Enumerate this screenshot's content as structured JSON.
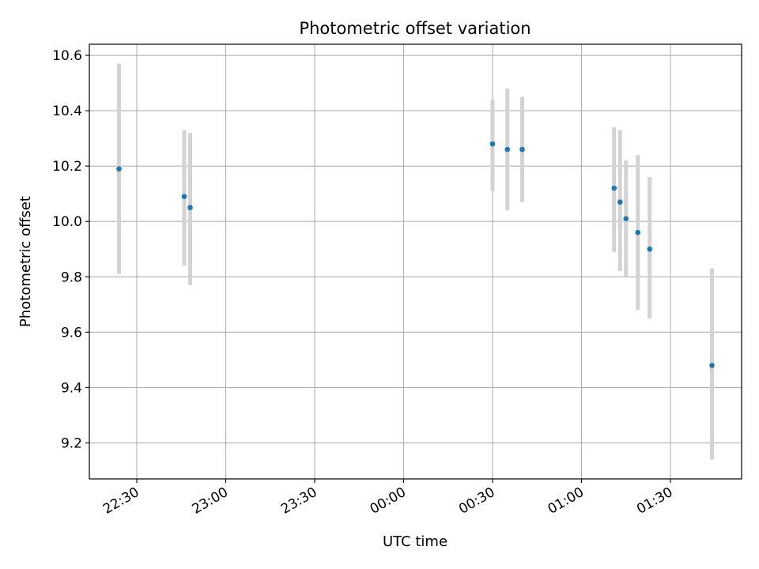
{
  "chart_data": {
    "type": "scatter",
    "title": "Photometric offset variation",
    "xlabel": "UTC time",
    "ylabel": "Photometric offset",
    "x_ticks": [
      "22:30",
      "23:00",
      "23:30",
      "00:00",
      "00:30",
      "01:00",
      "01:30"
    ],
    "y_ticks": [
      "9.2",
      "9.4",
      "9.6",
      "9.8",
      "10.0",
      "10.2",
      "10.4",
      "10.6"
    ],
    "xlim": [
      "22:14",
      "01:54"
    ],
    "ylim": [
      9.07,
      10.64
    ],
    "grid": true,
    "series": [
      {
        "color": "#1f77b4",
        "errorbar_color": "#d3d3d3",
        "points": [
          {
            "x": "22:24",
            "y": 10.19,
            "lo": 9.81,
            "hi": 10.57
          },
          {
            "x": "22:46",
            "y": 10.09,
            "lo": 9.84,
            "hi": 10.33
          },
          {
            "x": "22:48",
            "y": 10.05,
            "lo": 9.77,
            "hi": 10.32
          },
          {
            "x": "00:30",
            "y": 10.28,
            "lo": 10.11,
            "hi": 10.44
          },
          {
            "x": "00:35",
            "y": 10.26,
            "lo": 10.04,
            "hi": 10.48
          },
          {
            "x": "00:40",
            "y": 10.26,
            "lo": 10.07,
            "hi": 10.45
          },
          {
            "x": "01:11",
            "y": 10.12,
            "lo": 9.89,
            "hi": 10.34
          },
          {
            "x": "01:13",
            "y": 10.07,
            "lo": 9.82,
            "hi": 10.33
          },
          {
            "x": "01:15",
            "y": 10.01,
            "lo": 9.8,
            "hi": 10.22
          },
          {
            "x": "01:19",
            "y": 9.96,
            "lo": 9.68,
            "hi": 10.24
          },
          {
            "x": "01:23",
            "y": 9.9,
            "lo": 9.65,
            "hi": 10.16
          },
          {
            "x": "01:44",
            "y": 9.48,
            "lo": 9.14,
            "hi": 9.83
          }
        ]
      }
    ]
  }
}
